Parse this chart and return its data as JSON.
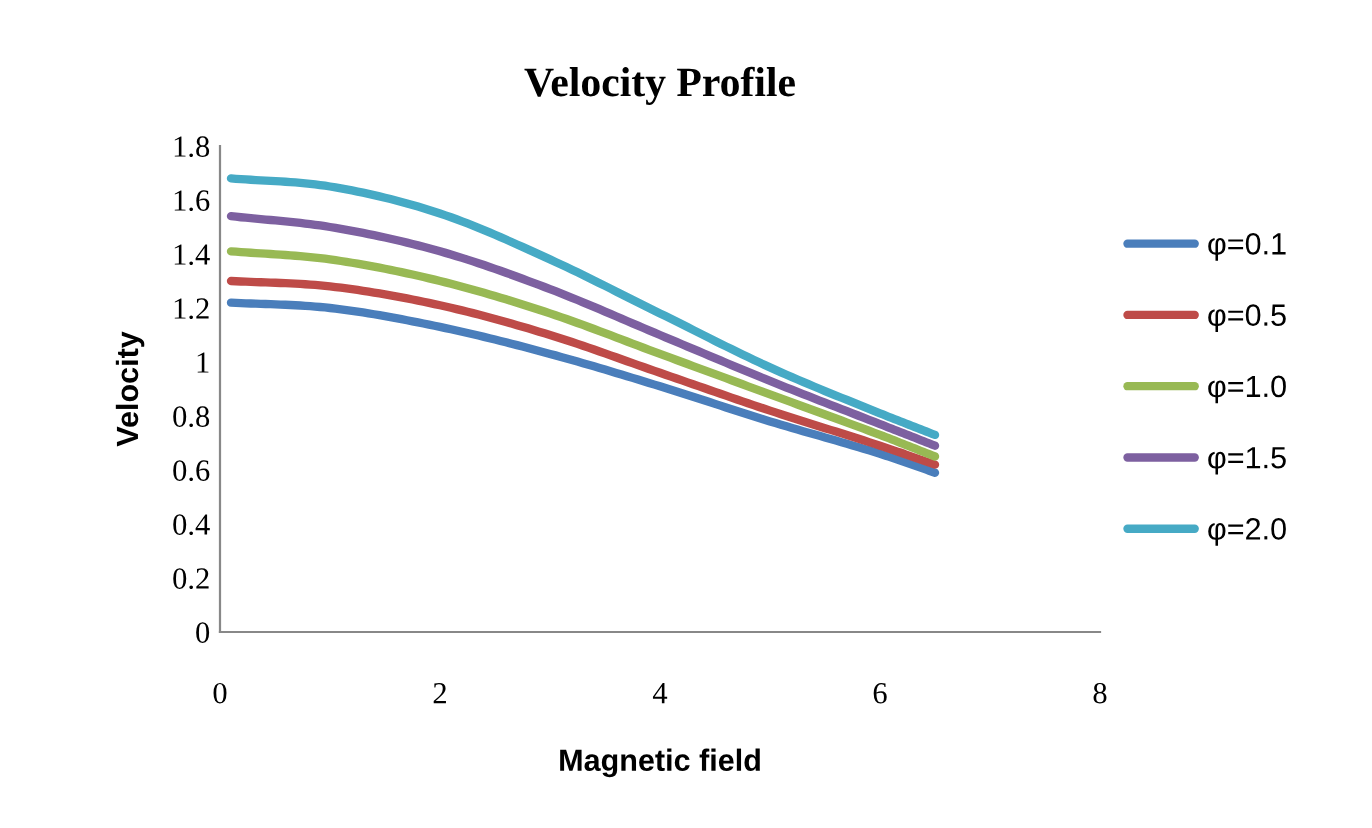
{
  "chart_data": {
    "type": "line",
    "title": "Velocity Profile",
    "xlabel": "Magnetic field",
    "ylabel": "Velocity",
    "x": [
      0.1,
      1,
      2,
      3,
      4,
      5,
      6,
      6.5
    ],
    "series": [
      {
        "name": "φ=0.1",
        "color": "#4a7ebb",
        "values": [
          1.22,
          1.2,
          1.13,
          1.03,
          0.91,
          0.78,
          0.66,
          0.59
        ]
      },
      {
        "name": "φ=0.5",
        "color": "#be4b48",
        "values": [
          1.3,
          1.28,
          1.21,
          1.1,
          0.96,
          0.82,
          0.69,
          0.62
        ]
      },
      {
        "name": "φ=1.0",
        "color": "#98b954",
        "values": [
          1.41,
          1.38,
          1.3,
          1.18,
          1.03,
          0.88,
          0.73,
          0.65
        ]
      },
      {
        "name": "φ=1.5",
        "color": "#7d60a0",
        "values": [
          1.54,
          1.5,
          1.41,
          1.27,
          1.1,
          0.93,
          0.77,
          0.69
        ]
      },
      {
        "name": "φ=2.0",
        "color": "#46aac5",
        "values": [
          1.68,
          1.65,
          1.55,
          1.38,
          1.18,
          0.98,
          0.81,
          0.73
        ]
      }
    ],
    "xlim": [
      0,
      8
    ],
    "xticks": [
      0,
      2,
      4,
      6,
      8
    ],
    "ylim": [
      0,
      1.8
    ],
    "yticks": [
      0,
      0.2,
      0.4,
      0.6,
      0.8,
      1,
      1.2,
      1.4,
      1.6,
      1.8
    ],
    "grid": false,
    "legend": "right",
    "marker": "none",
    "line_style": "solid"
  }
}
